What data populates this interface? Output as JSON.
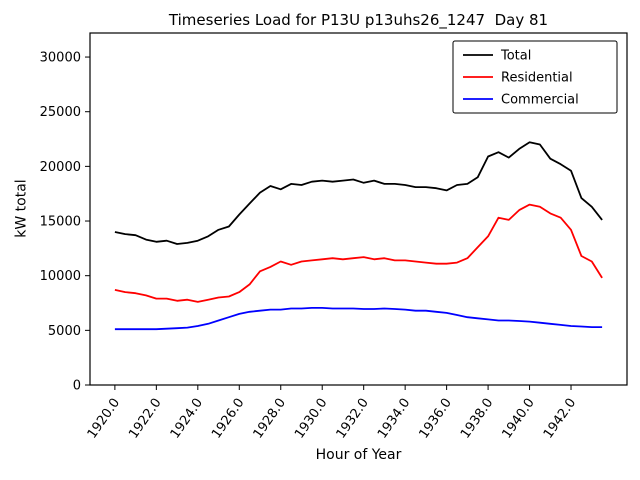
{
  "chart_data": {
    "type": "line",
    "title": "Timeseries Load for P13U p13uhs26_1247  Day 81",
    "xlabel": "Hour of Year",
    "ylabel": "kW total",
    "xlim": [
      1918.8,
      1944.7
    ],
    "ylim": [
      0,
      32200
    ],
    "grid": false,
    "legend_position": "upper right",
    "background": "#ffffff",
    "xticks": [
      1920,
      1922,
      1924,
      1926,
      1928,
      1930,
      1932,
      1934,
      1936,
      1938,
      1940,
      1942
    ],
    "xtick_labels": [
      "1920.0",
      "1922.0",
      "1924.0",
      "1926.0",
      "1928.0",
      "1930.0",
      "1932.0",
      "1934.0",
      "1936.0",
      "1938.0",
      "1940.0",
      "1942.0"
    ],
    "yticks": [
      0,
      5000,
      10000,
      15000,
      20000,
      25000,
      30000
    ],
    "ytick_labels": [
      "0",
      "5000",
      "10000",
      "15000",
      "20000",
      "25000",
      "30000"
    ],
    "x": [
      1920.0,
      1920.5,
      1921.0,
      1921.5,
      1922.0,
      1922.5,
      1923.0,
      1923.5,
      1924.0,
      1924.5,
      1925.0,
      1925.5,
      1926.0,
      1926.5,
      1927.0,
      1927.5,
      1928.0,
      1928.5,
      1929.0,
      1929.5,
      1930.0,
      1930.5,
      1931.0,
      1931.5,
      1932.0,
      1932.5,
      1933.0,
      1933.5,
      1934.0,
      1934.5,
      1935.0,
      1935.5,
      1936.0,
      1936.5,
      1937.0,
      1937.5,
      1938.0,
      1938.5,
      1939.0,
      1939.5,
      1940.0,
      1940.5,
      1941.0,
      1941.5,
      1942.0,
      1942.5,
      1943.0,
      1943.5
    ],
    "series": [
      {
        "name": "Total",
        "color": "#000000",
        "values": [
          14000,
          13800,
          13700,
          13300,
          13100,
          13200,
          12900,
          13000,
          13200,
          13600,
          14200,
          14500,
          15600,
          16600,
          17600,
          18200,
          17900,
          18400,
          18300,
          18600,
          18700,
          18600,
          18700,
          18800,
          18500,
          18700,
          18400,
          18400,
          18300,
          18100,
          18100,
          18000,
          17800,
          18300,
          18400,
          19000,
          20900,
          21300,
          20800,
          21600,
          22200,
          22000,
          20700,
          20200,
          19600,
          17100,
          16300,
          15100
        ]
      },
      {
        "name": "Residential",
        "color": "#ff0000",
        "values": [
          8700,
          8500,
          8400,
          8200,
          7900,
          7900,
          7700,
          7800,
          7600,
          7800,
          8000,
          8100,
          8500,
          9200,
          10400,
          10800,
          11300,
          11000,
          11300,
          11400,
          11500,
          11600,
          11500,
          11600,
          11700,
          11500,
          11600,
          11400,
          11400,
          11300,
          11200,
          11100,
          11100,
          11200,
          11600,
          12600,
          13600,
          15300,
          15100,
          16000,
          16500,
          16300,
          15700,
          15300,
          14200,
          11800,
          11300,
          9800
        ]
      },
      {
        "name": "Commercial",
        "color": "#0000ff",
        "values": [
          5100,
          5100,
          5100,
          5100,
          5100,
          5150,
          5200,
          5250,
          5400,
          5600,
          5900,
          6200,
          6500,
          6700,
          6800,
          6900,
          6900,
          7000,
          7000,
          7050,
          7050,
          7000,
          7000,
          7000,
          6950,
          6950,
          7000,
          6950,
          6900,
          6800,
          6800,
          6700,
          6600,
          6400,
          6200,
          6100,
          6000,
          5900,
          5900,
          5850,
          5800,
          5700,
          5600,
          5500,
          5400,
          5350,
          5300,
          5300
        ]
      }
    ]
  }
}
